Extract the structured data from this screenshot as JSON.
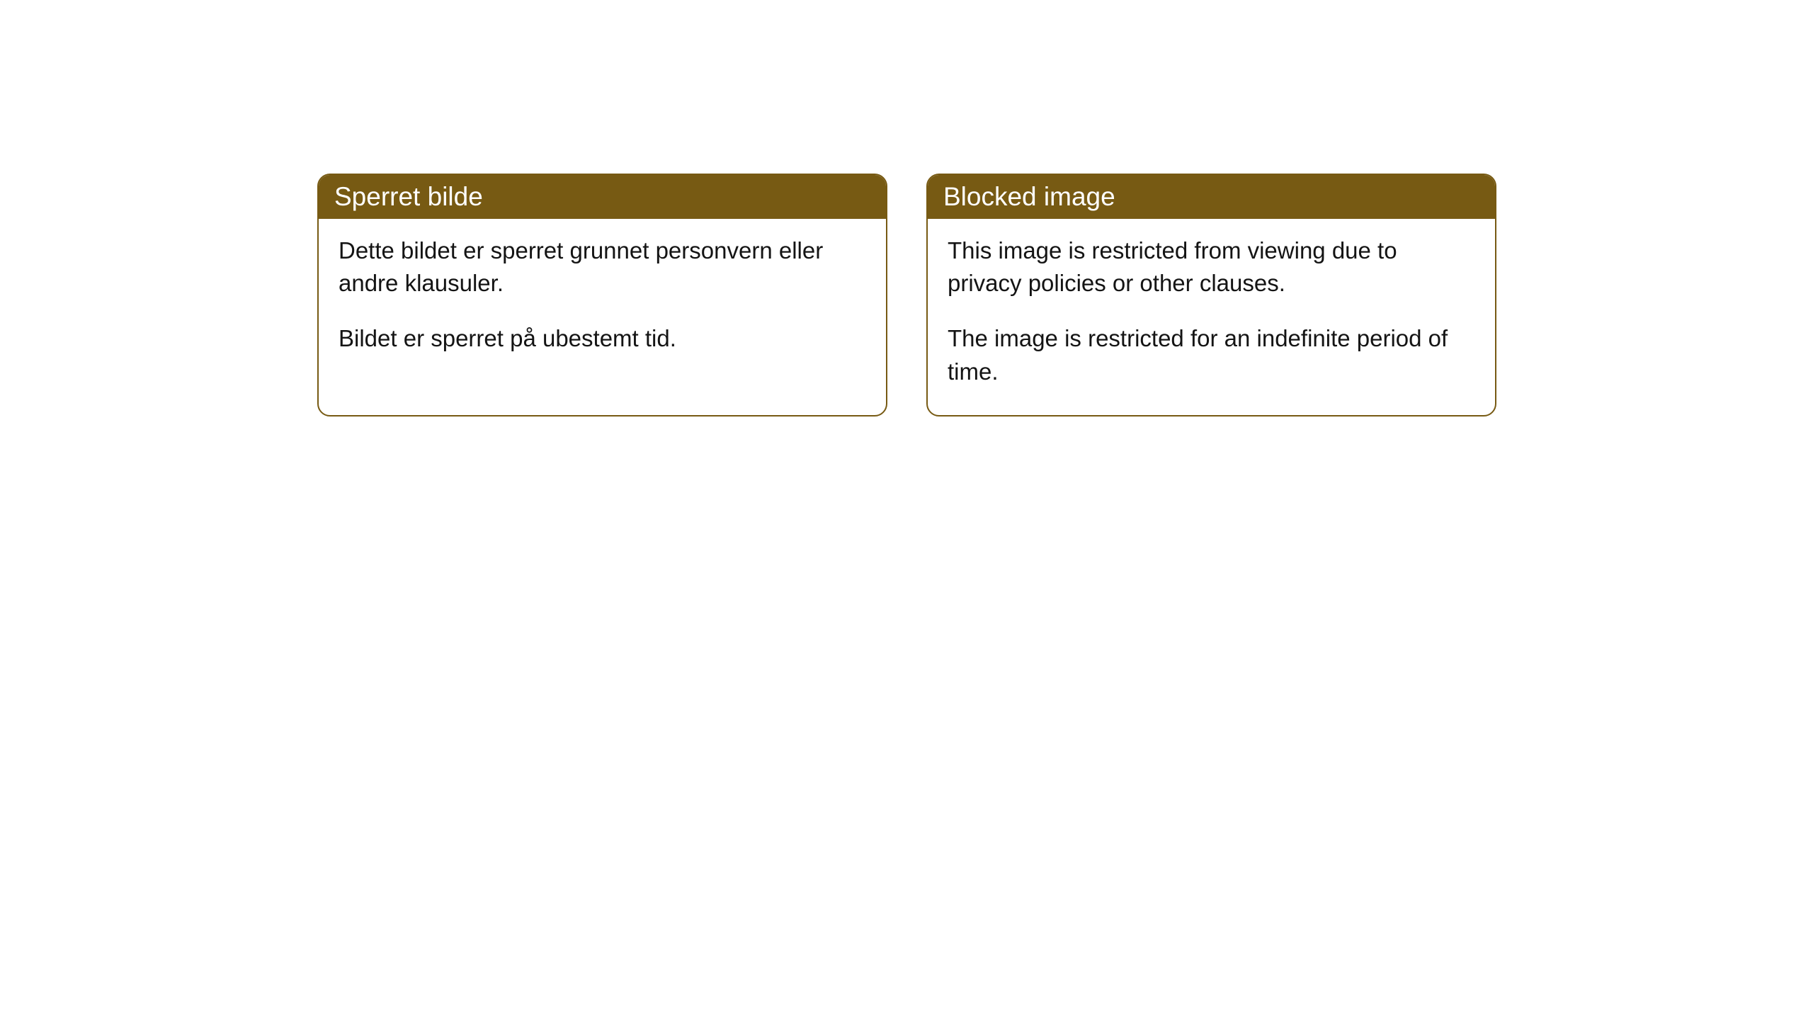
{
  "colors": {
    "header_bg": "#775a13",
    "header_text": "#ffffff",
    "border": "#775a13",
    "body_text": "#141414",
    "page_bg": "#ffffff"
  },
  "typography": {
    "header_fontsize": 37,
    "body_fontsize": 33,
    "font_family": "Arial, Helvetica, sans-serif"
  },
  "cards": [
    {
      "title": "Sperret bilde",
      "paragraphs": [
        "Dette bildet er sperret grunnet personvern eller andre klausuler.",
        "Bildet er sperret på ubestemt tid."
      ]
    },
    {
      "title": "Blocked image",
      "paragraphs": [
        "This image is restricted from viewing due to privacy policies or other clauses.",
        "The image is restricted for an indefinite period of time."
      ]
    }
  ]
}
